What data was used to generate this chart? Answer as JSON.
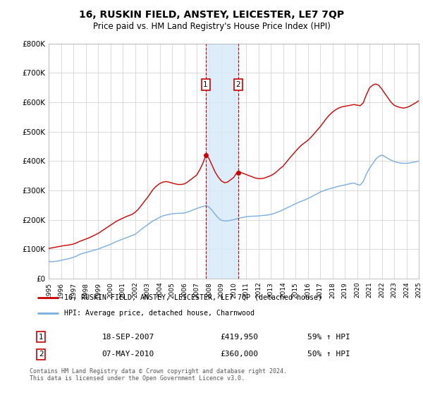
{
  "title": "16, RUSKIN FIELD, ANSTEY, LEICESTER, LE7 7QP",
  "subtitle": "Price paid vs. HM Land Registry's House Price Index (HPI)",
  "legend_line1": "16, RUSKIN FIELD, ANSTEY, LEICESTER, LE7 7QP (detached house)",
  "legend_line2": "HPI: Average price, detached house, Charnwood",
  "transaction1_date": "18-SEP-2007",
  "transaction1_price": 419950,
  "transaction1_hpi": "59% ↑ HPI",
  "transaction2_date": "07-MAY-2010",
  "transaction2_price": 360000,
  "transaction2_hpi": "50% ↑ HPI",
  "transaction1_year": 2007.72,
  "transaction2_year": 2010.37,
  "ylim": [
    0,
    800000
  ],
  "xlim": [
    1995,
    2025
  ],
  "yticks": [
    0,
    100000,
    200000,
    300000,
    400000,
    500000,
    600000,
    700000,
    800000
  ],
  "ytick_labels": [
    "£0",
    "£100K",
    "£200K",
    "£300K",
    "£400K",
    "£500K",
    "£600K",
    "£700K",
    "£800K"
  ],
  "red_color": "#cc0000",
  "blue_color": "#7aade0",
  "marker_box_color": "#cc0000",
  "shade_color": "#d8eaf8",
  "footer": "Contains HM Land Registry data © Crown copyright and database right 2024.\nThis data is licensed under the Open Government Licence v3.0.",
  "hpi_x": [
    1995.0,
    1995.08,
    1995.17,
    1995.25,
    1995.33,
    1995.42,
    1995.5,
    1995.58,
    1995.67,
    1995.75,
    1995.83,
    1995.92,
    1996.0,
    1996.08,
    1996.17,
    1996.25,
    1996.33,
    1996.42,
    1996.5,
    1996.58,
    1996.67,
    1996.75,
    1996.83,
    1996.92,
    1997.0,
    1997.08,
    1997.17,
    1997.25,
    1997.33,
    1997.42,
    1997.5,
    1997.58,
    1997.67,
    1997.75,
    1997.83,
    1997.92,
    1998.0,
    1998.25,
    1998.5,
    1998.75,
    1999.0,
    1999.25,
    1999.5,
    1999.75,
    2000.0,
    2000.25,
    2000.5,
    2000.75,
    2001.0,
    2001.25,
    2001.5,
    2001.75,
    2002.0,
    2002.25,
    2002.5,
    2002.75,
    2003.0,
    2003.25,
    2003.5,
    2003.75,
    2004.0,
    2004.25,
    2004.5,
    2004.75,
    2005.0,
    2005.25,
    2005.5,
    2005.75,
    2006.0,
    2006.25,
    2006.5,
    2006.75,
    2007.0,
    2007.25,
    2007.5,
    2007.75,
    2008.0,
    2008.25,
    2008.5,
    2008.75,
    2009.0,
    2009.25,
    2009.5,
    2009.75,
    2010.0,
    2010.25,
    2010.5,
    2010.75,
    2011.0,
    2011.25,
    2011.5,
    2011.75,
    2012.0,
    2012.25,
    2012.5,
    2012.75,
    2013.0,
    2013.25,
    2013.5,
    2013.75,
    2014.0,
    2014.25,
    2014.5,
    2014.75,
    2015.0,
    2015.25,
    2015.5,
    2015.75,
    2016.0,
    2016.25,
    2016.5,
    2016.75,
    2017.0,
    2017.25,
    2017.5,
    2017.75,
    2018.0,
    2018.25,
    2018.5,
    2018.75,
    2019.0,
    2019.25,
    2019.5,
    2019.75,
    2020.0,
    2020.25,
    2020.5,
    2020.75,
    2021.0,
    2021.25,
    2021.5,
    2021.75,
    2022.0,
    2022.25,
    2022.5,
    2022.75,
    2023.0,
    2023.25,
    2023.5,
    2023.75,
    2024.0,
    2024.25,
    2024.5,
    2024.75,
    2025.0
  ],
  "hpi_y": [
    58000,
    58500,
    57000,
    57500,
    57000,
    57500,
    58000,
    58500,
    59000,
    59500,
    60000,
    61000,
    62000,
    62500,
    63000,
    64000,
    65000,
    65500,
    66000,
    67000,
    68000,
    69000,
    70000,
    71000,
    72000,
    73000,
    75000,
    76000,
    78000,
    80000,
    82000,
    83000,
    84000,
    85000,
    86000,
    87000,
    88000,
    91000,
    94000,
    97000,
    100000,
    104000,
    108000,
    112000,
    116000,
    121000,
    126000,
    130000,
    134000,
    138000,
    142000,
    146000,
    150000,
    158000,
    167000,
    175000,
    182000,
    190000,
    197000,
    202000,
    208000,
    213000,
    216000,
    218000,
    220000,
    221000,
    222000,
    222000,
    223000,
    226000,
    230000,
    234000,
    238000,
    242000,
    245000,
    248000,
    243000,
    232000,
    218000,
    206000,
    198000,
    196000,
    196000,
    198000,
    200000,
    203000,
    206000,
    208000,
    210000,
    211000,
    212000,
    212000,
    213000,
    214000,
    215000,
    216000,
    218000,
    221000,
    225000,
    229000,
    234000,
    239000,
    244000,
    249000,
    254000,
    259000,
    263000,
    267000,
    272000,
    277000,
    283000,
    288000,
    294000,
    298000,
    302000,
    305000,
    308000,
    311000,
    314000,
    316000,
    318000,
    321000,
    323000,
    325000,
    320000,
    318000,
    330000,
    355000,
    375000,
    390000,
    405000,
    415000,
    420000,
    415000,
    408000,
    403000,
    398000,
    395000,
    393000,
    392000,
    392000,
    393000,
    395000,
    397000,
    400000
  ],
  "red_x": [
    1995.0,
    1995.25,
    1995.5,
    1995.75,
    1996.0,
    1996.25,
    1996.5,
    1996.75,
    1997.0,
    1997.25,
    1997.5,
    1997.75,
    1998.0,
    1998.25,
    1998.5,
    1998.75,
    1999.0,
    1999.25,
    1999.5,
    1999.75,
    2000.0,
    2000.25,
    2000.5,
    2000.75,
    2001.0,
    2001.25,
    2001.5,
    2001.75,
    2002.0,
    2002.25,
    2002.5,
    2002.75,
    2003.0,
    2003.25,
    2003.5,
    2003.75,
    2004.0,
    2004.25,
    2004.5,
    2004.75,
    2005.0,
    2005.25,
    2005.5,
    2005.75,
    2006.0,
    2006.25,
    2006.5,
    2006.75,
    2007.0,
    2007.25,
    2007.5,
    2007.75,
    2008.0,
    2008.25,
    2008.5,
    2008.75,
    2009.0,
    2009.25,
    2009.5,
    2009.75,
    2010.0,
    2010.25,
    2010.5,
    2010.75,
    2011.0,
    2011.25,
    2011.5,
    2011.75,
    2012.0,
    2012.25,
    2012.5,
    2012.75,
    2013.0,
    2013.25,
    2013.5,
    2013.75,
    2014.0,
    2014.25,
    2014.5,
    2014.75,
    2015.0,
    2015.25,
    2015.5,
    2015.75,
    2016.0,
    2016.25,
    2016.5,
    2016.75,
    2017.0,
    2017.25,
    2017.5,
    2017.75,
    2018.0,
    2018.25,
    2018.5,
    2018.75,
    2019.0,
    2019.25,
    2019.5,
    2019.75,
    2020.0,
    2020.25,
    2020.5,
    2020.75,
    2021.0,
    2021.25,
    2021.5,
    2021.75,
    2022.0,
    2022.25,
    2022.5,
    2022.75,
    2023.0,
    2023.25,
    2023.5,
    2023.75,
    2024.0,
    2024.25,
    2024.5,
    2024.75,
    2025.0
  ],
  "red_y": [
    102000,
    104000,
    106000,
    108000,
    110000,
    112000,
    113000,
    115000,
    117000,
    121000,
    126000,
    130000,
    134000,
    138000,
    143000,
    148000,
    153000,
    160000,
    167000,
    174000,
    181000,
    188000,
    195000,
    200000,
    205000,
    210000,
    214000,
    218000,
    225000,
    235000,
    248000,
    262000,
    275000,
    290000,
    305000,
    315000,
    323000,
    328000,
    330000,
    328000,
    325000,
    322000,
    320000,
    320000,
    322000,
    328000,
    336000,
    344000,
    352000,
    370000,
    392000,
    419950,
    408000,
    385000,
    362000,
    345000,
    332000,
    326000,
    328000,
    336000,
    344000,
    360000,
    362000,
    358000,
    354000,
    350000,
    346000,
    342000,
    340000,
    340000,
    342000,
    346000,
    350000,
    356000,
    364000,
    374000,
    382000,
    395000,
    408000,
    420000,
    432000,
    444000,
    454000,
    462000,
    470000,
    480000,
    492000,
    504000,
    516000,
    530000,
    544000,
    556000,
    566000,
    574000,
    580000,
    584000,
    586000,
    588000,
    590000,
    592000,
    590000,
    588000,
    598000,
    625000,
    648000,
    658000,
    662000,
    658000,
    645000,
    630000,
    615000,
    600000,
    590000,
    585000,
    582000,
    580000,
    582000,
    586000,
    592000,
    598000,
    605000
  ]
}
